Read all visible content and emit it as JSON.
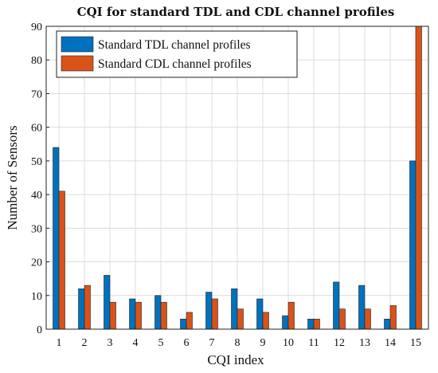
{
  "chart_data": {
    "type": "bar",
    "title": "CQI for standard TDL and CDL channel profiles",
    "xlabel": "CQI index",
    "ylabel": "Number of Sensors",
    "categories": [
      "1",
      "2",
      "3",
      "4",
      "5",
      "6",
      "7",
      "8",
      "9",
      "10",
      "11",
      "12",
      "13",
      "14",
      "15"
    ],
    "ylim": [
      0,
      90
    ],
    "yticks": [
      "0",
      "10",
      "20",
      "30",
      "40",
      "50",
      "60",
      "70",
      "80",
      "90"
    ],
    "grid": true,
    "legend_position": "top-left",
    "series": [
      {
        "name": "Standard TDL channel profiles",
        "color": "#0072BD",
        "values": [
          54,
          12,
          16,
          9,
          10,
          3,
          11,
          12,
          9,
          4,
          3,
          14,
          13,
          3,
          50
        ]
      },
      {
        "name": "Standard CDL channel profiles",
        "color": "#D95319",
        "values": [
          41,
          13,
          8,
          8,
          8,
          5,
          9,
          6,
          5,
          8,
          3,
          6,
          6,
          7,
          90
        ]
      }
    ]
  }
}
